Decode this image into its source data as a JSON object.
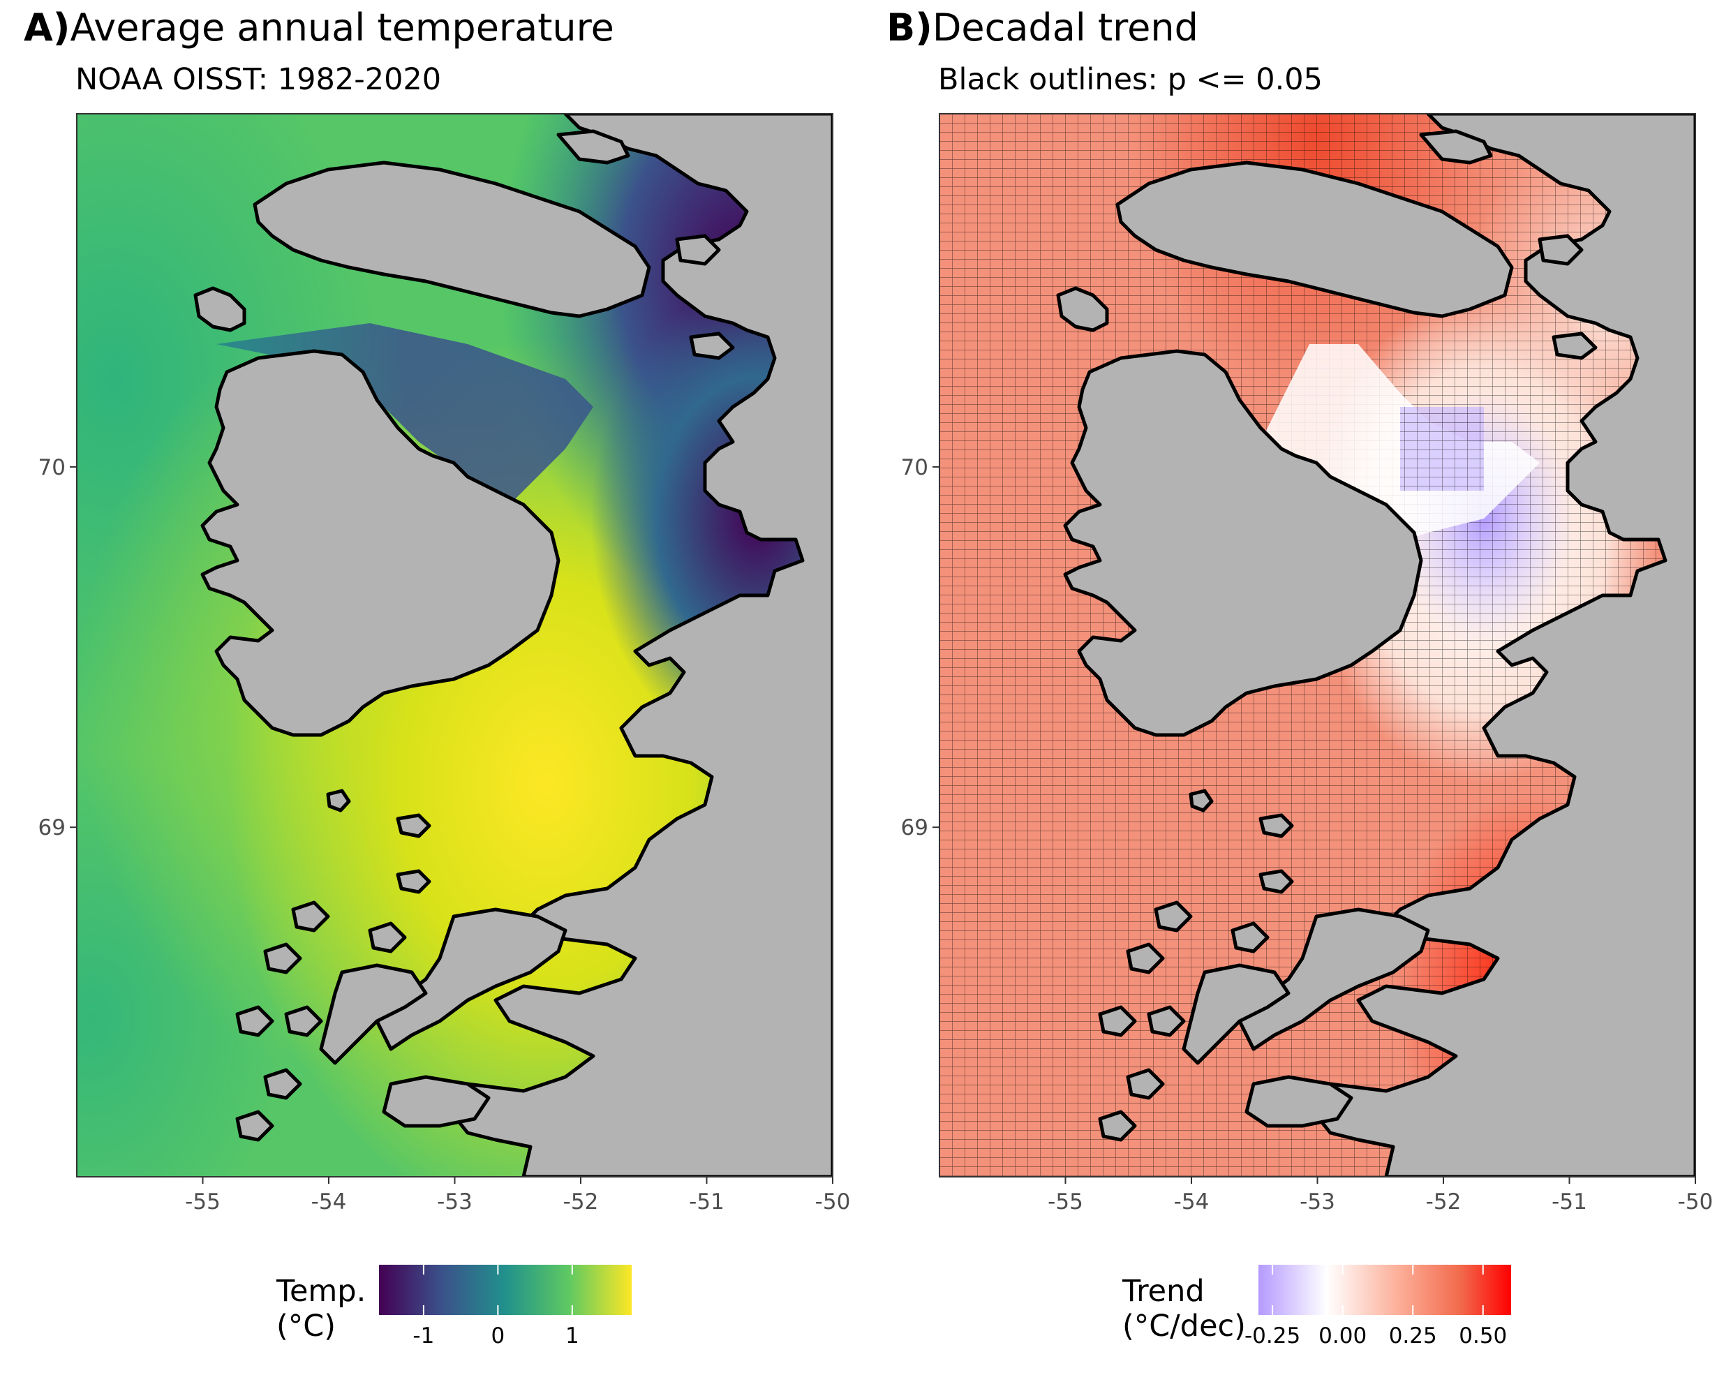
{
  "panels": [
    {
      "label": "A)",
      "title": "Average annual temperature",
      "subtitle": "NOAA OISST: 1982-2020",
      "x_ticks": [
        "-55",
        "-54",
        "-53",
        "-52",
        "-51",
        "-50"
      ],
      "y_ticks": [
        "70",
        "69"
      ],
      "legend": {
        "title_line1": "Temp.",
        "title_line2": "(°C)",
        "ticks": [
          "-1",
          "0",
          "1"
        ],
        "colors": [
          "#440154",
          "#3b528b",
          "#21918c",
          "#5ec962",
          "#fde725"
        ]
      }
    },
    {
      "label": "B)",
      "title": "Decadal trend",
      "subtitle": "Black outlines: p <= 0.05",
      "x_ticks": [
        "-55",
        "-54",
        "-53",
        "-52",
        "-51",
        "-50"
      ],
      "y_ticks": [
        "70",
        "69"
      ],
      "legend": {
        "title_line1": "Trend",
        "title_line2": "(°C/dec)",
        "ticks": [
          "-0.25",
          "0.00",
          "0.25",
          "0.50"
        ],
        "colors": [
          "#b49aff",
          "#ffffff",
          "#fcb09a",
          "#f26a4c",
          "#ff0000"
        ]
      }
    }
  ],
  "chart_data": [
    {
      "type": "heatmap",
      "title": "Average annual temperature",
      "subtitle": "NOAA OISST: 1982-2020",
      "x_range": [
        -56,
        -50
      ],
      "y_range": [
        68.03,
        70.98
      ],
      "x_ticks": [
        -55,
        -54,
        -53,
        -52,
        -51,
        -50
      ],
      "y_ticks": [
        70,
        69
      ],
      "legend_title": "Temp. (°C)",
      "color_range": [
        -1.6,
        1.8
      ],
      "colorscale": "viridis",
      "description_values": {
        "open_sea_west": 0.9,
        "central_bay": 1.7,
        "northern_strait": -0.8,
        "eastern_fjords": -1.4
      }
    },
    {
      "type": "heatmap",
      "title": "Decadal trend",
      "subtitle": "Black outlines: p <= 0.05",
      "x_range": [
        -56,
        -50
      ],
      "y_range": [
        68.03,
        70.98
      ],
      "x_ticks": [
        -55,
        -54,
        -53,
        -52,
        -51,
        -50
      ],
      "y_ticks": [
        70,
        69
      ],
      "legend_title": "Trend (°C/dec)",
      "color_range": [
        -0.3,
        0.6
      ],
      "legend_ticks": [
        -0.25,
        0.0,
        0.25,
        0.5
      ],
      "description_values": {
        "open_sea_west": 0.4,
        "northern_strait": 0.0,
        "vaigat_region": -0.2,
        "southeast_bay": 0.6
      }
    }
  ]
}
